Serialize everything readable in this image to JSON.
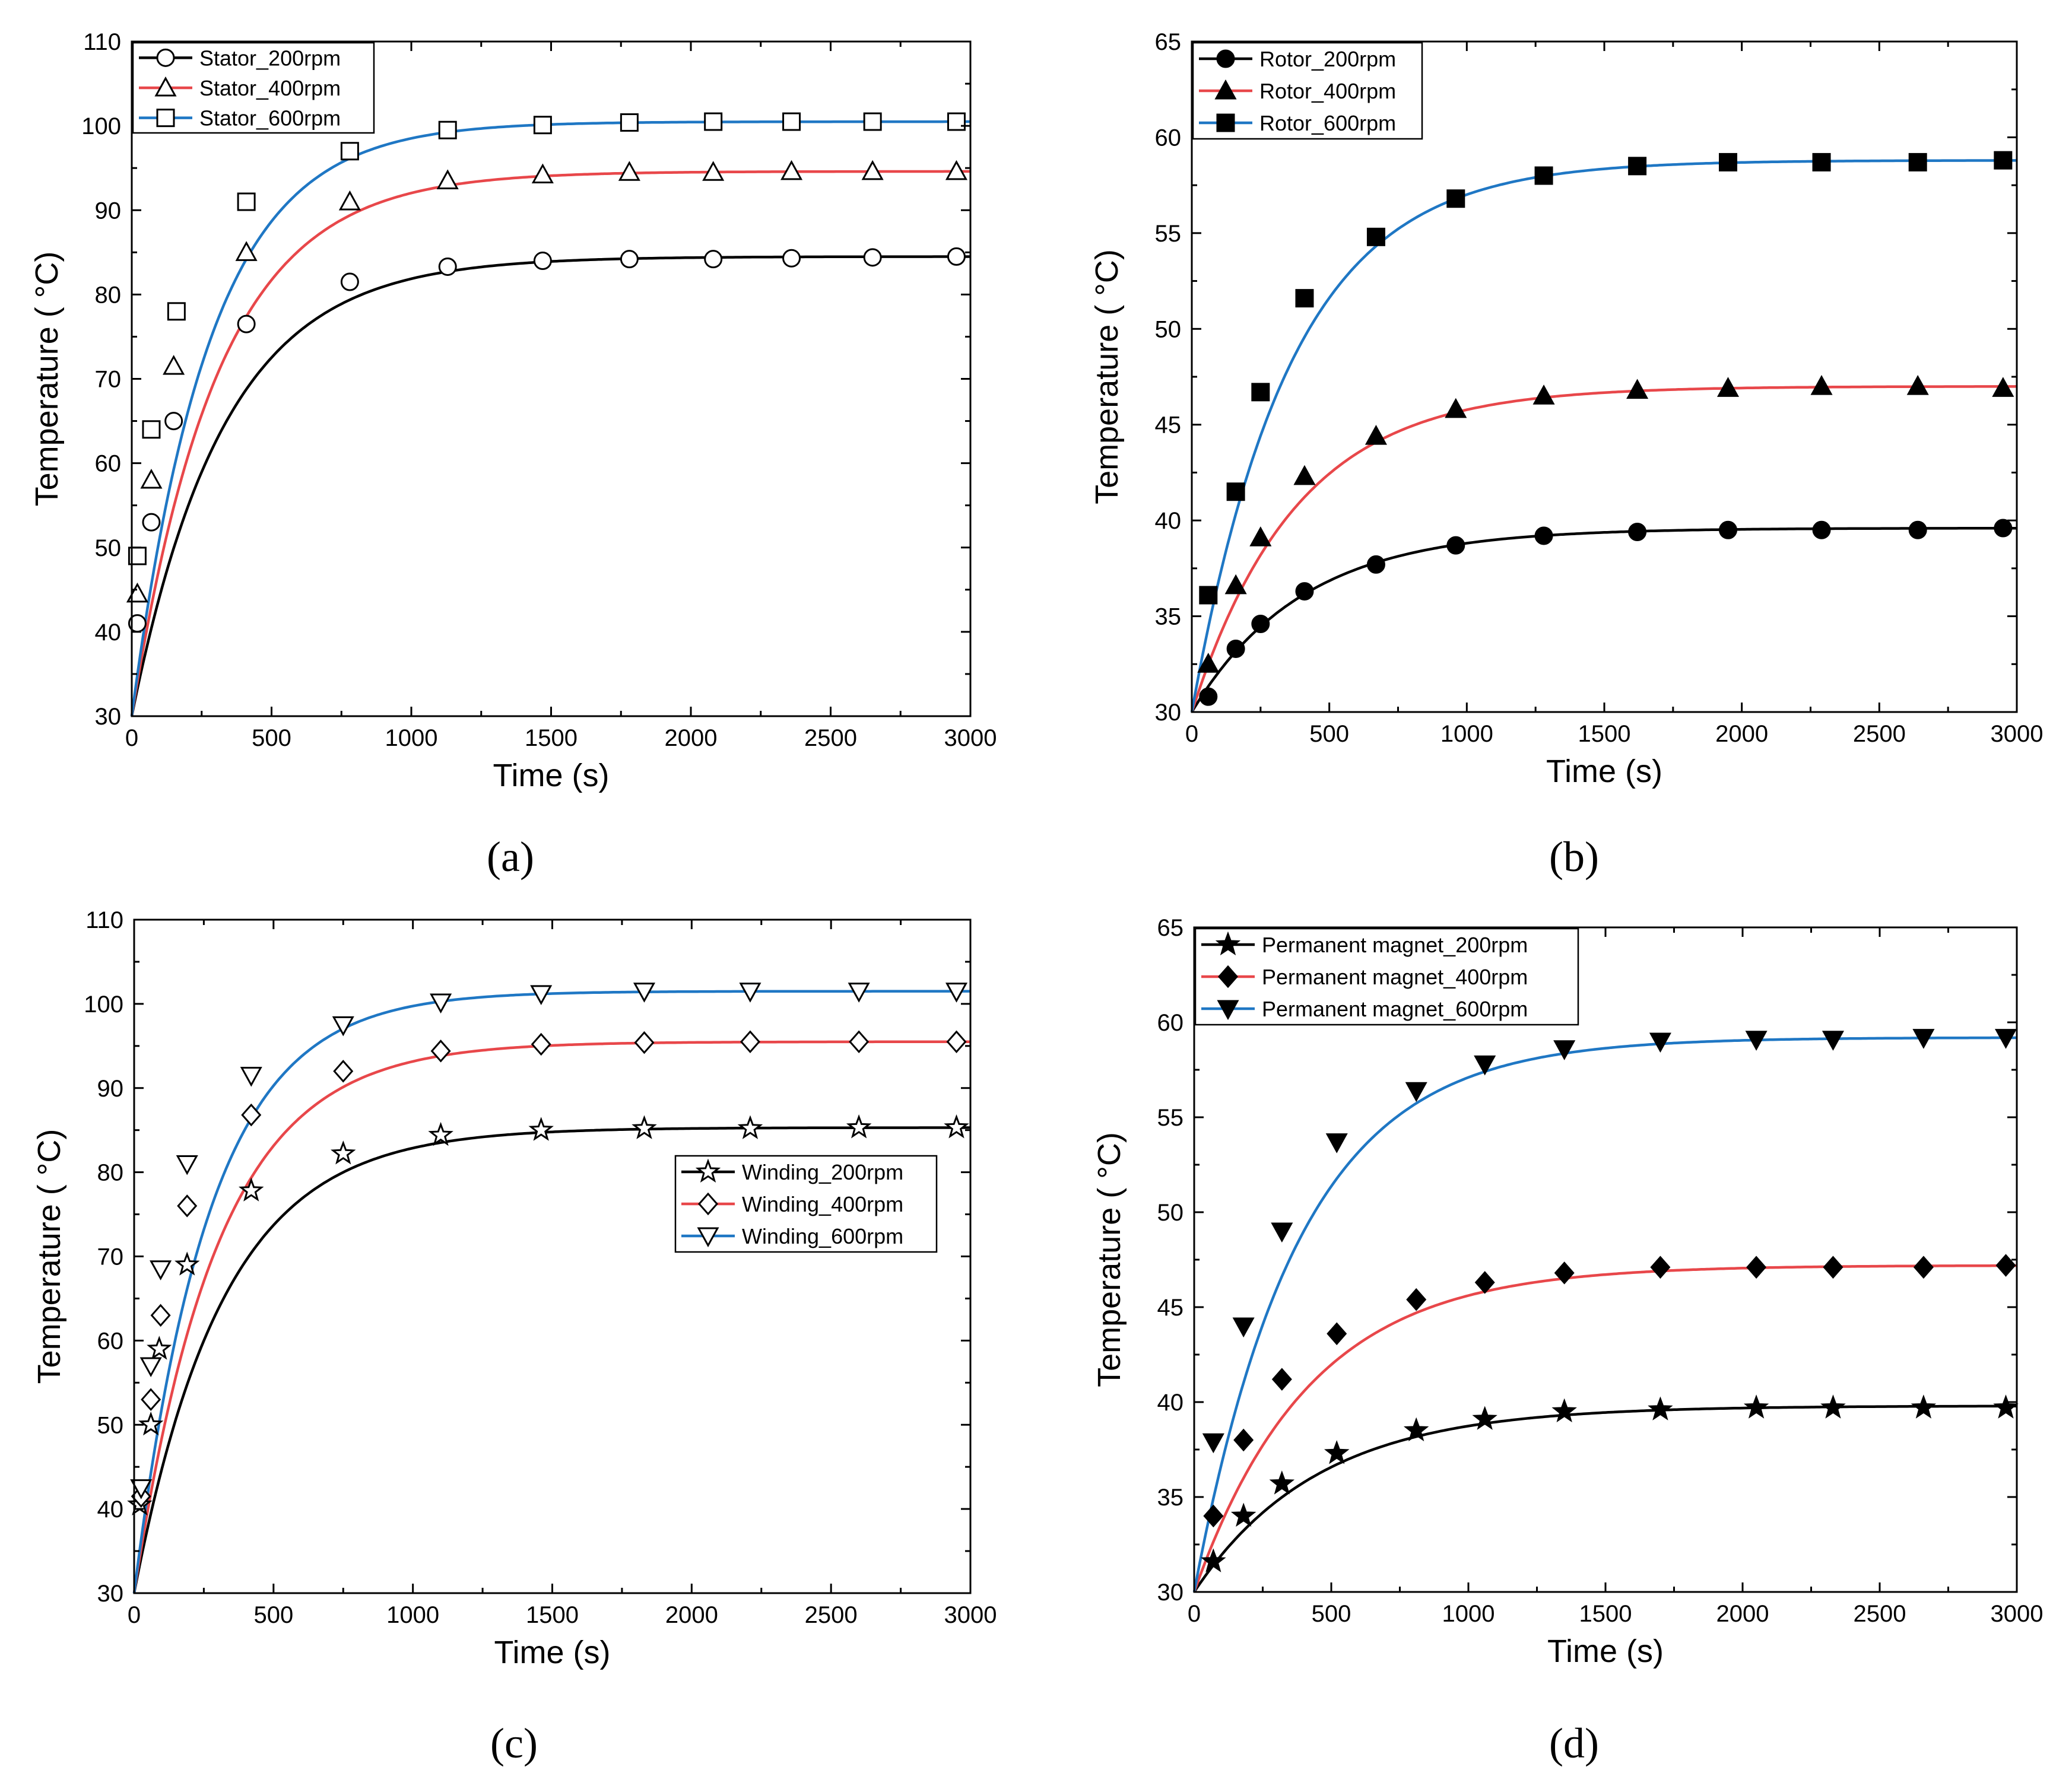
{
  "colors": {
    "black": "#000000",
    "red": "#e8474a",
    "blue": "#1f77c4"
  },
  "chart_data": [
    {
      "type": "line",
      "panel_label": "(a)",
      "title": "",
      "xlabel": "Time (s)",
      "ylabel": "Temperature ( °C)",
      "xlim": [
        0,
        3000
      ],
      "ylim": [
        30,
        110
      ],
      "xticks": [
        0,
        500,
        1000,
        1500,
        2000,
        2500,
        3000
      ],
      "yticks": [
        30,
        40,
        50,
        60,
        70,
        80,
        90,
        100,
        110
      ],
      "legend_position": "top-left",
      "series": [
        {
          "name": "Stator_200rpm",
          "color": "black",
          "marker": "circle-open",
          "start": 30,
          "end": 84.5,
          "tau": 330,
          "marker_x": [
            20,
            70,
            150,
            410,
            780,
            1130,
            1470,
            1780,
            2080,
            2360,
            2650,
            2950
          ],
          "marker_y": [
            41,
            53,
            65,
            76.5,
            81.5,
            83.3,
            84,
            84.2,
            84.2,
            84.3,
            84.4,
            84.5
          ]
        },
        {
          "name": "Stator_400rpm",
          "color": "red",
          "marker": "triangle-up-open",
          "start": 30,
          "end": 94.6,
          "tau": 310,
          "marker_x": [
            20,
            70,
            150,
            410,
            780,
            1130,
            1470,
            1780,
            2080,
            2360,
            2650,
            2950
          ],
          "marker_y": [
            44.5,
            58,
            71.5,
            85,
            91,
            93.5,
            94.2,
            94.5,
            94.5,
            94.6,
            94.6,
            94.6
          ]
        },
        {
          "name": "Stator_600rpm",
          "color": "blue",
          "marker": "square-open",
          "start": 30,
          "end": 100.5,
          "tau": 280,
          "marker_x": [
            20,
            70,
            160,
            410,
            780,
            1130,
            1470,
            1780,
            2080,
            2360,
            2650,
            2950
          ],
          "marker_y": [
            49,
            64,
            78,
            91,
            97,
            99.5,
            100.1,
            100.4,
            100.5,
            100.5,
            100.5,
            100.5
          ]
        }
      ]
    },
    {
      "type": "line",
      "panel_label": "(b)",
      "title": "",
      "xlabel": "Time (s)",
      "ylabel": "Temperature ( °C)",
      "xlim": [
        0,
        3000
      ],
      "ylim": [
        30,
        65
      ],
      "xticks": [
        0,
        500,
        1000,
        1500,
        2000,
        2500,
        3000
      ],
      "yticks": [
        30,
        35,
        40,
        45,
        50,
        55,
        60,
        65
      ],
      "legend_position": "top-left",
      "series": [
        {
          "name": "Rotor_200rpm",
          "color": "black",
          "marker": "circle-filled",
          "start": 30,
          "end": 39.6,
          "tau": 400,
          "marker_x": [
            60,
            160,
            250,
            410,
            670,
            960,
            1280,
            1620,
            1950,
            2290,
            2640,
            2950
          ],
          "marker_y": [
            30.8,
            33.3,
            34.6,
            36.3,
            37.7,
            38.7,
            39.2,
            39.4,
            39.5,
            39.5,
            39.5,
            39.6
          ]
        },
        {
          "name": "Rotor_400rpm",
          "color": "red",
          "marker": "triangle-up-filled",
          "start": 30,
          "end": 47,
          "tau": 380,
          "marker_x": [
            60,
            160,
            250,
            410,
            670,
            960,
            1280,
            1620,
            1950,
            2290,
            2640,
            2950
          ],
          "marker_y": [
            32.5,
            36.6,
            39.1,
            42.3,
            44.4,
            45.8,
            46.5,
            46.8,
            46.9,
            47,
            47,
            46.9
          ]
        },
        {
          "name": "Rotor_600rpm",
          "color": "blue",
          "marker": "square-filled",
          "start": 30,
          "end": 58.8,
          "tau": 360,
          "marker_x": [
            60,
            160,
            250,
            410,
            670,
            960,
            1280,
            1620,
            1950,
            2290,
            2640,
            2950
          ],
          "marker_y": [
            36.1,
            41.5,
            46.7,
            51.6,
            54.8,
            56.8,
            58,
            58.5,
            58.7,
            58.7,
            58.7,
            58.8
          ]
        }
      ]
    },
    {
      "type": "line",
      "panel_label": "(c)",
      "title": "",
      "xlabel": "Time (s)",
      "ylabel": "Temperature ( °C)",
      "xlim": [
        0,
        3000
      ],
      "ylim": [
        30,
        110
      ],
      "xticks": [
        0,
        500,
        1000,
        1500,
        2000,
        2500,
        3000
      ],
      "yticks": [
        30,
        40,
        50,
        60,
        70,
        80,
        90,
        100,
        110
      ],
      "legend_position": "center-right",
      "series": [
        {
          "name": "Winding_200rpm",
          "color": "black",
          "marker": "star-open",
          "start": 30,
          "end": 85.3,
          "tau": 320,
          "marker_x": [
            20,
            60,
            90,
            190,
            420,
            750,
            1100,
            1460,
            1830,
            2210,
            2600,
            2950
          ],
          "marker_y": [
            40.5,
            50,
            59,
            69,
            77.8,
            82.2,
            84.4,
            85,
            85.2,
            85.2,
            85.3,
            85.3
          ]
        },
        {
          "name": "Winding_400rpm",
          "color": "red",
          "marker": "diamond-open",
          "start": 30,
          "end": 95.5,
          "tau": 300,
          "marker_x": [
            25,
            60,
            95,
            190,
            420,
            750,
            1100,
            1460,
            1830,
            2210,
            2600,
            2950
          ],
          "marker_y": [
            41.5,
            53,
            63,
            76,
            86.8,
            92,
            94.4,
            95.2,
            95.4,
            95.5,
            95.5,
            95.5
          ]
        },
        {
          "name": "Winding_600rpm",
          "color": "blue",
          "marker": "triangle-down-open",
          "start": 30,
          "end": 101.5,
          "tau": 270,
          "marker_x": [
            25,
            60,
            95,
            190,
            420,
            750,
            1100,
            1460,
            1830,
            2210,
            2600,
            2950
          ],
          "marker_y": [
            42.5,
            57,
            68.5,
            81,
            91.5,
            97.5,
            100.2,
            101.2,
            101.5,
            101.5,
            101.5,
            101.5
          ]
        }
      ]
    },
    {
      "type": "line",
      "panel_label": "(d)",
      "title": "",
      "xlabel": "Time (s)",
      "ylabel": "Temperature ( °C)",
      "xlim": [
        0,
        3000
      ],
      "ylim": [
        30,
        65
      ],
      "xticks": [
        0,
        500,
        1000,
        1500,
        2000,
        2500,
        3000
      ],
      "yticks": [
        30,
        35,
        40,
        45,
        50,
        55,
        60,
        65
      ],
      "legend_position": "top-left",
      "series": [
        {
          "name": "Permanent magnet_200rpm",
          "color": "black",
          "marker": "star-filled",
          "start": 30,
          "end": 39.8,
          "tau": 450,
          "marker_x": [
            70,
            180,
            320,
            520,
            810,
            1060,
            1350,
            1700,
            2050,
            2330,
            2660,
            2960
          ],
          "marker_y": [
            31.6,
            34,
            35.7,
            37.3,
            38.5,
            39.1,
            39.5,
            39.6,
            39.7,
            39.7,
            39.7,
            39.7
          ]
        },
        {
          "name": "Permanent magnet_400rpm",
          "color": "red",
          "marker": "diamond-filled",
          "start": 30,
          "end": 47.2,
          "tau": 420,
          "marker_x": [
            70,
            180,
            320,
            520,
            810,
            1060,
            1350,
            1700,
            2050,
            2330,
            2660,
            2960
          ],
          "marker_y": [
            34,
            38,
            41.2,
            43.6,
            45.4,
            46.3,
            46.8,
            47.1,
            47.1,
            47.1,
            47.1,
            47.2
          ]
        },
        {
          "name": "Permanent magnet_600rpm",
          "color": "blue",
          "marker": "triangle-down-filled",
          "start": 30,
          "end": 59.2,
          "tau": 380,
          "marker_x": [
            70,
            180,
            320,
            520,
            810,
            1060,
            1350,
            1700,
            2050,
            2330,
            2660,
            2960
          ],
          "marker_y": [
            37.9,
            44,
            49,
            53.7,
            56.4,
            57.8,
            58.6,
            59,
            59.1,
            59.1,
            59.2,
            59.2
          ]
        }
      ]
    }
  ]
}
